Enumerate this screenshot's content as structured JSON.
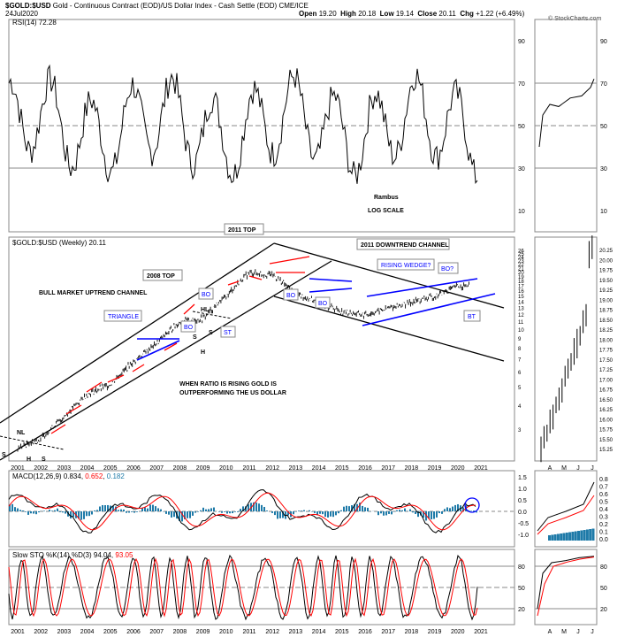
{
  "header": {
    "symbol": "$GOLD:$USD",
    "description": "Gold - Continuous Contract (EOD)/US Dollar Index - Cash Settle (EOD) CME/ICE",
    "date": "24Jul2020",
    "open_label": "Open",
    "open": "19.20",
    "high_label": "High",
    "high": "20.18",
    "low_label": "Low",
    "low": "19.14",
    "close_label": "Close",
    "close": "20.11",
    "chg_label": "Chg",
    "chg": "+1.22 (+6.49%)",
    "copyright": "© StockCharts.com"
  },
  "chart_data": [
    {
      "type": "line",
      "title": "RSI(14) 72.28",
      "ylim": [
        0,
        100
      ],
      "y_ticks": [
        10,
        30,
        50,
        70,
        90
      ],
      "reference_lines": [
        30,
        50,
        70
      ],
      "annotations": [
        "Rambus",
        "LOG SCALE"
      ]
    },
    {
      "type": "bar",
      "title": "$GOLD:$USD (Weekly) 20.11",
      "scale": "log",
      "x_tick_labels": [
        "2001",
        "2002",
        "2003",
        "2004",
        "2005",
        "2006",
        "2007",
        "2008",
        "2009",
        "2010",
        "2011",
        "2012",
        "2013",
        "2014",
        "2015",
        "2016",
        "2017",
        "2018",
        "2019",
        "2020",
        "2021"
      ],
      "y_ticks_left": [
        3,
        4,
        5,
        6,
        7,
        8,
        9,
        10,
        11,
        12,
        13,
        14,
        15,
        16,
        17,
        18,
        19,
        20,
        21,
        22,
        23,
        24,
        25,
        26
      ],
      "y_ticks_right": [
        "15.25",
        "15.50",
        "15.75",
        "16.00",
        "16.25",
        "16.50",
        "16.75",
        "17.00",
        "17.25",
        "17.50",
        "17.75",
        "18.00",
        "18.25",
        "18.50",
        "18.75",
        "19.00",
        "19.25",
        "19.50",
        "19.75",
        "20.00",
        "20.25"
      ],
      "x_ticks_inset": [
        "A",
        "M",
        "J",
        "J"
      ],
      "series": [
        {
          "values_by_year": {
            "2001": 2.4,
            "2002": 2.7,
            "2003": 3.5,
            "2004": 4.6,
            "2005": 5.2,
            "2006": 6.8,
            "2007": 8.5,
            "2008": 11.0,
            "2009": 11.5,
            "2010": 15.0,
            "2011": 20.0,
            "2012": 19.5,
            "2013": 15.5,
            "2014": 14.0,
            "2015": 12.5,
            "2016": 12.0,
            "2017": 13.0,
            "2018": 14.0,
            "2019": 15.0,
            "2020": 17.0
          }
        }
      ],
      "annotations": {
        "top_2011": "2011 TOP",
        "downtrend": "2011 DOWNTREND CHANNEL",
        "top_2008": "2008 TOP",
        "rising_wedge": "RISING WEDGE?",
        "bo_q": "BO?",
        "bt": "BT",
        "bull_channel": "BULL MARKET UPTREND CHANNEL",
        "triangle": "TRIANGLE",
        "bo": "BO",
        "st": "ST",
        "hl": "HL",
        "nl": "NL",
        "s": "S",
        "h": "H",
        "ratio_note_1": "WHEN RATIO IS RISING GOLD IS",
        "ratio_note_2": "OUTPERFORMING THE US DOLLAR"
      }
    },
    {
      "type": "line",
      "title_prefix": "MACD(12,26,9)",
      "macd_value": "0.834",
      "signal_value": "0.652",
      "hist_value": "0.182",
      "y_ticks_left": [
        "1.5",
        "1.0",
        "0.5",
        "0.0",
        "-0.5",
        "-1.0"
      ],
      "y_ticks_right": [
        "0.8",
        "0.7",
        "0.6",
        "0.5",
        "0.4",
        "0.3",
        "0.2",
        "0.1",
        "0.0"
      ]
    },
    {
      "type": "line",
      "title_prefix": "Slow STO %K(14) %D(3)",
      "k_value": "94.04",
      "d_value": "93.05",
      "y_ticks": [
        20,
        50,
        80
      ],
      "reference_lines": [
        20,
        80
      ]
    }
  ],
  "colors": {
    "black": "#000000",
    "blue": "#0000ff",
    "red": "#ff0000",
    "panel_grid": "#808080",
    "hist": "#1e7aa8"
  }
}
